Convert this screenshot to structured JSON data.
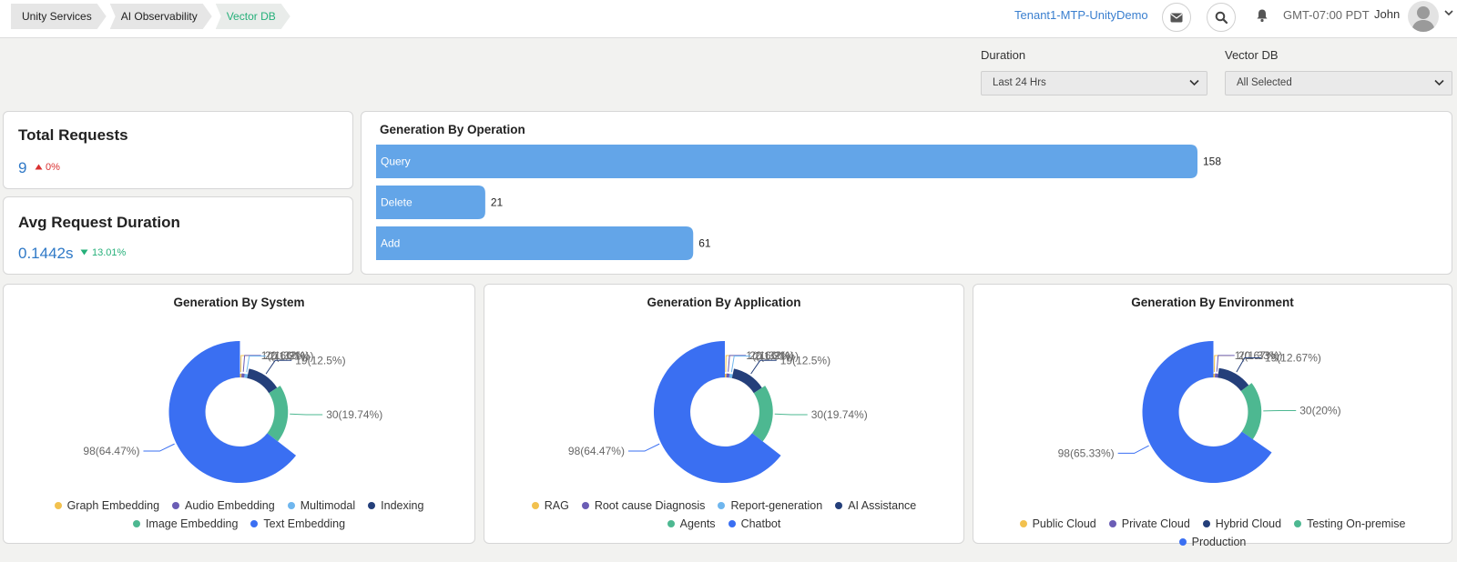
{
  "breadcrumbs": [
    "Unity Services",
    "AI Observability",
    "Vector DB"
  ],
  "header": {
    "tenant": "Tenant1-MTP-UnityDemo",
    "timezone": "GMT-07:00 PDT",
    "user": "John"
  },
  "filters": {
    "duration": {
      "label": "Duration",
      "value": "Last 24 Hrs"
    },
    "vector_db": {
      "label": "Vector DB",
      "value": "All Selected"
    }
  },
  "kpis": {
    "total_requests": {
      "title": "Total Requests",
      "value": "9",
      "delta": "0%",
      "direction": "up",
      "delta_color": "#d93030"
    },
    "avg_duration": {
      "title": "Avg Request Duration",
      "value": "0.1442s",
      "delta": "13.01%",
      "direction": "down",
      "delta_color": "#26b07a"
    }
  },
  "colors": {
    "accent": "#3a7fcf",
    "bar": "#63a5e8"
  },
  "chart_data": [
    {
      "type": "bar",
      "orientation": "horizontal",
      "title": "Generation By Operation",
      "categories": [
        "Query",
        "Delete",
        "Add"
      ],
      "values": [
        158,
        21,
        61
      ],
      "xlim": [
        0,
        158
      ]
    },
    {
      "type": "pie",
      "variant": "rose",
      "title": "Generation By System",
      "labels": [
        "Graph Embedding",
        "Audio Embedding",
        "Multimodal",
        "Indexing",
        "Image Embedding",
        "Text Embedding"
      ],
      "values": [
        1,
        2,
        2,
        19,
        30,
        98
      ],
      "data_labels": [
        "1(0.66%)",
        "2(1.32%)",
        "2(1.31%)",
        "19(12.5%)",
        "30(19.74%)",
        "98(64.47%)"
      ],
      "colors": [
        "#f2c14e",
        "#6b5db5",
        "#6fb6ee",
        "#243f7a",
        "#4db891",
        "#3a6ff2"
      ],
      "legend": "bottom"
    },
    {
      "type": "pie",
      "variant": "rose",
      "title": "Generation By Application",
      "labels": [
        "RAG",
        "Root cause Diagnosis",
        "Report-generation",
        "AI Assistance",
        "Agents",
        "Chatbot"
      ],
      "values": [
        1,
        2,
        2,
        19,
        30,
        98
      ],
      "data_labels": [
        "1(0.66%)",
        "2(1.32%)",
        "2(1.31%)",
        "19(12.5%)",
        "30(19.74%)",
        "98(64.47%)"
      ],
      "colors": [
        "#f2c14e",
        "#6b5db5",
        "#6fb6ee",
        "#243f7a",
        "#4db891",
        "#3a6ff2"
      ],
      "legend": "bottom"
    },
    {
      "type": "pie",
      "variant": "rose",
      "title": "Generation By Environment",
      "labels": [
        "Public Cloud",
        "Private Cloud",
        "Hybrid Cloud",
        "Testing On-premise",
        "Production"
      ],
      "values": [
        1,
        2,
        19,
        30,
        98
      ],
      "data_labels": [
        "1(0.67%)",
        "2(1.33%)",
        "19(12.67%)",
        "30(20%)",
        "98(65.33%)"
      ],
      "colors": [
        "#f2c14e",
        "#6b5db5",
        "#243f7a",
        "#4db891",
        "#3a6ff2"
      ],
      "legend": "bottom"
    }
  ]
}
